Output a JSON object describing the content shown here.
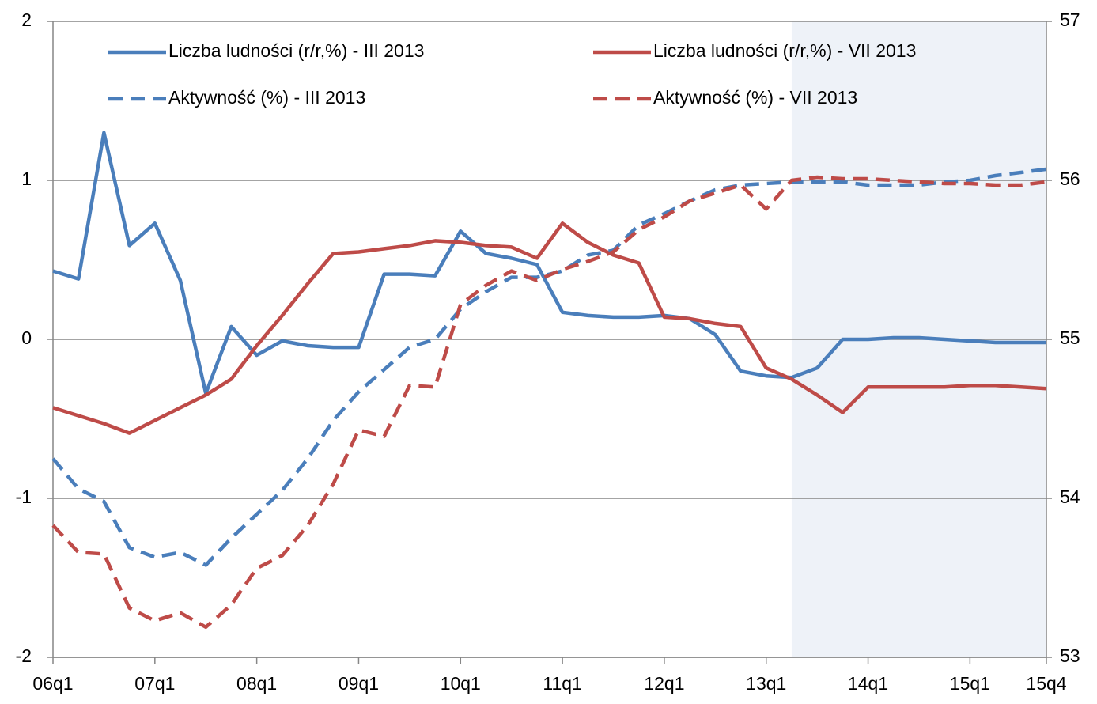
{
  "chart_data": {
    "type": "line",
    "categories": [
      "06q1",
      null,
      null,
      null,
      "07q1",
      null,
      null,
      null,
      "08q1",
      null,
      null,
      null,
      "09q1",
      null,
      null,
      null,
      "10q1",
      null,
      null,
      null,
      "11q1",
      null,
      null,
      null,
      "12q1",
      null,
      null,
      null,
      "13q1",
      null,
      null,
      null,
      "14q1",
      null,
      null,
      null,
      "15q1",
      null,
      null,
      "15q4"
    ],
    "ylim": [
      -2,
      2
    ],
    "yticks": [
      -2,
      -1,
      0,
      1,
      2
    ],
    "y2lim": [
      53,
      57
    ],
    "y2ticks": [
      53,
      54,
      55,
      56,
      57
    ],
    "grid": true,
    "legend": "top",
    "shaded_xlim": [
      29,
      39
    ],
    "shade_color": "#eef2f8",
    "series": [
      {
        "name": "Liczba ludności (r/r,%) - III 2013",
        "color": "#4a7ebb",
        "dash": false,
        "axis": "y",
        "values": [
          0.43,
          0.38,
          1.3,
          0.59,
          0.73,
          0.37,
          -0.34,
          0.08,
          -0.1,
          -0.01,
          -0.04,
          -0.05,
          -0.05,
          0.41,
          0.41,
          0.4,
          0.68,
          0.54,
          0.51,
          0.47,
          0.17,
          0.15,
          0.14,
          0.14,
          0.15,
          0.13,
          0.03,
          -0.2,
          -0.23,
          -0.24,
          -0.18,
          0.0,
          0.0,
          0.01,
          0.01,
          0.0,
          -0.01,
          -0.02,
          -0.02,
          -0.02
        ]
      },
      {
        "name": "Liczba ludności (r/r,%) - VII 2013",
        "color": "#be4b48",
        "dash": false,
        "axis": "y",
        "values": [
          -0.43,
          -0.48,
          -0.53,
          -0.59,
          -0.51,
          -0.43,
          -0.35,
          -0.25,
          -0.04,
          0.15,
          0.35,
          0.54,
          0.55,
          0.57,
          0.59,
          0.62,
          0.61,
          0.59,
          0.58,
          0.51,
          0.73,
          0.61,
          0.53,
          0.48,
          0.14,
          0.13,
          0.1,
          0.08,
          -0.18,
          -0.25,
          -0.35,
          -0.46,
          -0.3,
          -0.3,
          -0.3,
          -0.3,
          -0.29,
          -0.29,
          -0.3,
          -0.31
        ]
      },
      {
        "name": "Aktywność (%) - III 2013",
        "color": "#4a7ebb",
        "dash": true,
        "axis": "y2",
        "values": [
          54.25,
          54.06,
          53.98,
          53.69,
          53.63,
          53.66,
          53.58,
          53.75,
          53.9,
          54.05,
          54.25,
          54.49,
          54.67,
          54.81,
          54.95,
          55.0,
          55.19,
          55.3,
          55.39,
          55.39,
          55.43,
          55.53,
          55.56,
          55.72,
          55.79,
          55.87,
          55.94,
          55.97,
          55.98,
          55.99,
          55.99,
          55.99,
          55.97,
          55.97,
          55.97,
          55.99,
          56.0,
          56.03,
          56.05,
          56.07
        ]
      },
      {
        "name": "Aktywność (%) - VII 2013",
        "color": "#be4b48",
        "dash": true,
        "axis": "y2",
        "values": [
          53.83,
          53.66,
          53.65,
          53.31,
          53.23,
          53.28,
          53.19,
          53.33,
          53.56,
          53.64,
          53.83,
          54.09,
          54.43,
          54.39,
          54.71,
          54.7,
          55.22,
          55.34,
          55.43,
          55.37,
          55.44,
          55.49,
          55.55,
          55.69,
          55.77,
          55.87,
          55.92,
          55.97,
          55.82,
          56.0,
          56.02,
          56.01,
          56.01,
          56.0,
          55.99,
          55.98,
          55.98,
          55.97,
          55.97,
          55.99
        ]
      }
    ]
  }
}
